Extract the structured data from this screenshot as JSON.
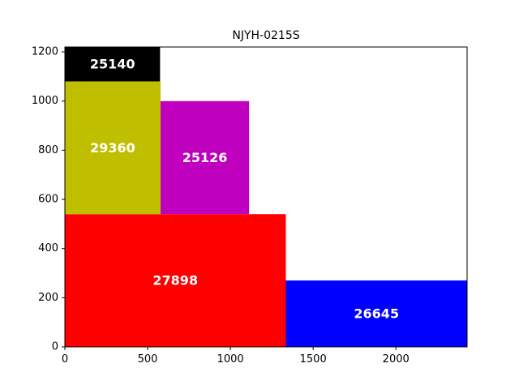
{
  "chart_data": {
    "type": "treemap-rectangles",
    "title": "NJYH-0215S",
    "xlim": [
      0,
      2430
    ],
    "ylim": [
      0,
      1220
    ],
    "x_ticks": [
      0,
      500,
      1000,
      1500,
      2000
    ],
    "y_ticks": [
      0,
      200,
      400,
      600,
      800,
      1000,
      1200
    ],
    "grid": false,
    "rects": [
      {
        "label": "27898",
        "x": 0,
        "y": 0,
        "w": 1335,
        "h": 540,
        "color": "#ff0000"
      },
      {
        "label": "26645",
        "x": 1335,
        "y": 0,
        "w": 1095,
        "h": 270,
        "color": "#0000ff"
      },
      {
        "label": "29360",
        "x": 0,
        "y": 540,
        "w": 578,
        "h": 540,
        "color": "#bfbf00"
      },
      {
        "label": "25126",
        "x": 578,
        "y": 540,
        "w": 535,
        "h": 460,
        "color": "#bf00bf"
      },
      {
        "label": "25140",
        "x": 0,
        "y": 1080,
        "w": 575,
        "h": 140,
        "color": "#000000"
      }
    ]
  }
}
